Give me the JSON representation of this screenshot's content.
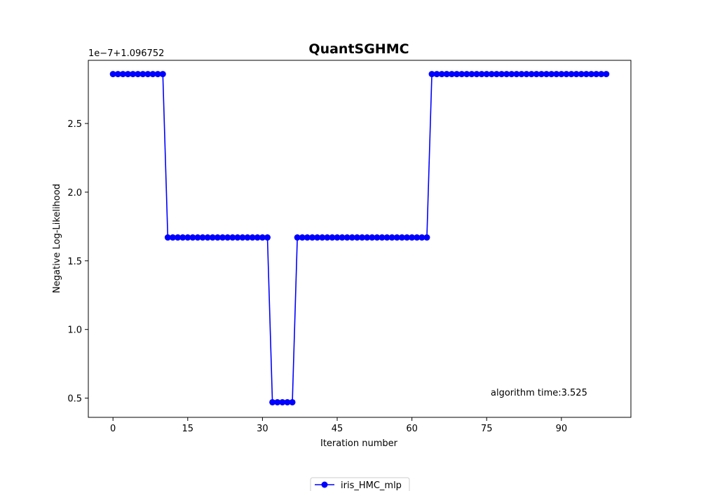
{
  "chart_data": {
    "type": "line",
    "title": "QuantSGHMC",
    "xlabel": "Iteration number",
    "ylabel": "Negative Log-Likelihood",
    "y_offset_label": "1e−7+1.096752",
    "annotation": "algorithm time:3.525",
    "xlim": [
      -4.95,
      103.95
    ],
    "ylim": [
      0.36,
      2.96
    ],
    "x_ticks": [
      0,
      15,
      30,
      45,
      60,
      75,
      90
    ],
    "y_ticks": [
      0.5,
      1.0,
      1.5,
      2.0,
      2.5
    ],
    "y_tick_labels": [
      "0.5",
      "1.0",
      "1.5",
      "2.0",
      "2.5"
    ],
    "grid": false,
    "legend_position": "bottom-center",
    "series": [
      {
        "name": "iris_HMC_mlp",
        "color": "#0000ff",
        "marker": "circle",
        "x": [
          0,
          1,
          2,
          3,
          4,
          5,
          6,
          7,
          8,
          9,
          10,
          11,
          12,
          13,
          14,
          15,
          16,
          17,
          18,
          19,
          20,
          21,
          22,
          23,
          24,
          25,
          26,
          27,
          28,
          29,
          30,
          31,
          32,
          33,
          34,
          35,
          36,
          37,
          38,
          39,
          40,
          41,
          42,
          43,
          44,
          45,
          46,
          47,
          48,
          49,
          50,
          51,
          52,
          53,
          54,
          55,
          56,
          57,
          58,
          59,
          60,
          61,
          62,
          63,
          64,
          65,
          66,
          67,
          68,
          69,
          70,
          71,
          72,
          73,
          74,
          75,
          76,
          77,
          78,
          79,
          80,
          81,
          82,
          83,
          84,
          85,
          86,
          87,
          88,
          89,
          90,
          91,
          92,
          93,
          94,
          95,
          96,
          97,
          98,
          99
        ],
        "y": [
          2.86,
          2.86,
          2.86,
          2.86,
          2.86,
          2.86,
          2.86,
          2.86,
          2.86,
          2.86,
          2.86,
          1.67,
          1.67,
          1.67,
          1.67,
          1.67,
          1.67,
          1.67,
          1.67,
          1.67,
          1.67,
          1.67,
          1.67,
          1.67,
          1.67,
          1.67,
          1.67,
          1.67,
          1.67,
          1.67,
          1.67,
          1.67,
          0.47,
          0.47,
          0.47,
          0.47,
          0.47,
          1.67,
          1.67,
          1.67,
          1.67,
          1.67,
          1.67,
          1.67,
          1.67,
          1.67,
          1.67,
          1.67,
          1.67,
          1.67,
          1.67,
          1.67,
          1.67,
          1.67,
          1.67,
          1.67,
          1.67,
          1.67,
          1.67,
          1.67,
          1.67,
          1.67,
          1.67,
          1.67,
          2.86,
          2.86,
          2.86,
          2.86,
          2.86,
          2.86,
          2.86,
          2.86,
          2.86,
          2.86,
          2.86,
          2.86,
          2.86,
          2.86,
          2.86,
          2.86,
          2.86,
          2.86,
          2.86,
          2.86,
          2.86,
          2.86,
          2.86,
          2.86,
          2.86,
          2.86,
          2.86,
          2.86,
          2.86,
          2.86,
          2.86,
          2.86,
          2.86,
          2.86,
          2.86,
          2.86
        ]
      }
    ]
  }
}
